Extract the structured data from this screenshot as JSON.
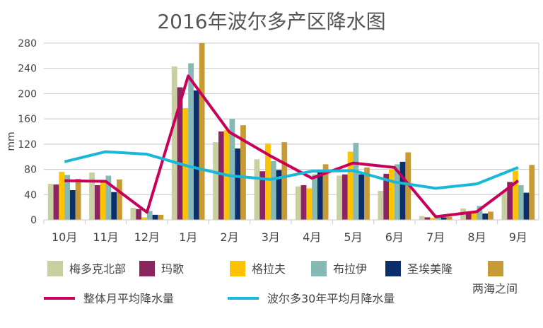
{
  "chart_data": {
    "type": "bar",
    "title": "2016年波尔多产区降水图",
    "ylabel": "mm",
    "xlabel": "",
    "ylim": [
      0,
      280
    ],
    "yticks": [
      0,
      40,
      80,
      120,
      160,
      200,
      240,
      280
    ],
    "grid": true,
    "legend_placement": "bottom",
    "categories": [
      "10月",
      "11月",
      "12月",
      "1月",
      "2月",
      "3月",
      "4月",
      "5月",
      "6月",
      "7月",
      "8月",
      "9月"
    ],
    "series": [
      {
        "name": "梅多克北部",
        "color": "#c8cfa0",
        "values": [
          57,
          75,
          19,
          243,
          123,
          96,
          53,
          70,
          46,
          6,
          18,
          45
        ]
      },
      {
        "name": "玛歌",
        "color": "#8b2560",
        "values": [
          56,
          55,
          17,
          210,
          140,
          77,
          55,
          72,
          73,
          4,
          12,
          60
        ]
      },
      {
        "name": "格拉夫",
        "color": "#fdc300",
        "values": [
          76,
          60,
          4,
          177,
          142,
          121,
          50,
          108,
          80,
          3,
          12,
          78
        ]
      },
      {
        "name": "布拉伊",
        "color": "#86b8b5",
        "values": [
          71,
          70,
          14,
          248,
          160,
          93,
          72,
          122,
          88,
          5,
          22,
          55
        ]
      },
      {
        "name": "圣埃美隆",
        "color": "#0c2f6b",
        "values": [
          47,
          44,
          8,
          205,
          113,
          79,
          75,
          72,
          92,
          4,
          10,
          43
        ]
      },
      {
        "name": "两海之间",
        "color": "#c79a33",
        "values": [
          65,
          64,
          8,
          280,
          150,
          123,
          88,
          83,
          107,
          5,
          13,
          87
        ]
      }
    ],
    "lines": [
      {
        "name": "整体月平均降水量",
        "color": "#c8005a",
        "values": [
          62,
          61,
          12,
          228,
          139,
          101,
          66,
          90,
          83,
          5,
          13,
          62
        ]
      },
      {
        "name": "波尔多30年平均月降水量",
        "color": "#1ab8d8",
        "values": [
          92,
          108,
          104,
          85,
          70,
          64,
          77,
          78,
          60,
          50,
          57,
          83
        ]
      }
    ]
  }
}
